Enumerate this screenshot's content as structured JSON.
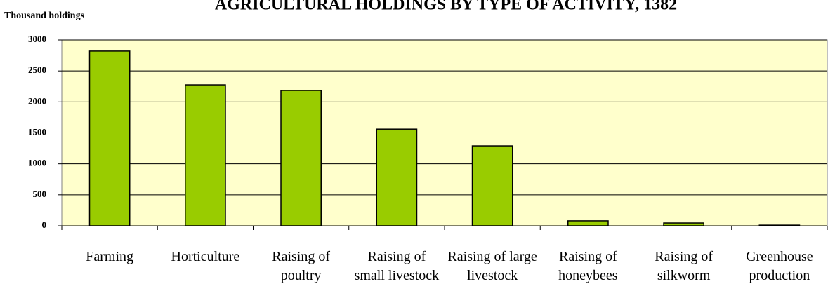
{
  "chart_data": {
    "type": "bar",
    "title": "AGRICULTURAL HOLDINGS BY TYPE OF ACTIVITY, 1382",
    "y_label": "Thousand holdings",
    "categories": [
      "Farming",
      "Horticulture",
      "Raising of poultry",
      "Raising of small livestock",
      "Raising of large livestock",
      "Raising of honeybees",
      "Raising of silkworm",
      "Greenhouse production"
    ],
    "values": [
      2820,
      2275,
      2185,
      1560,
      1290,
      80,
      45,
      10
    ],
    "color": "#99cc00",
    "ylim": [
      0,
      3000
    ],
    "yticks": [
      0,
      500,
      1000,
      1500,
      2000,
      2500,
      3000
    ],
    "grid": true
  }
}
